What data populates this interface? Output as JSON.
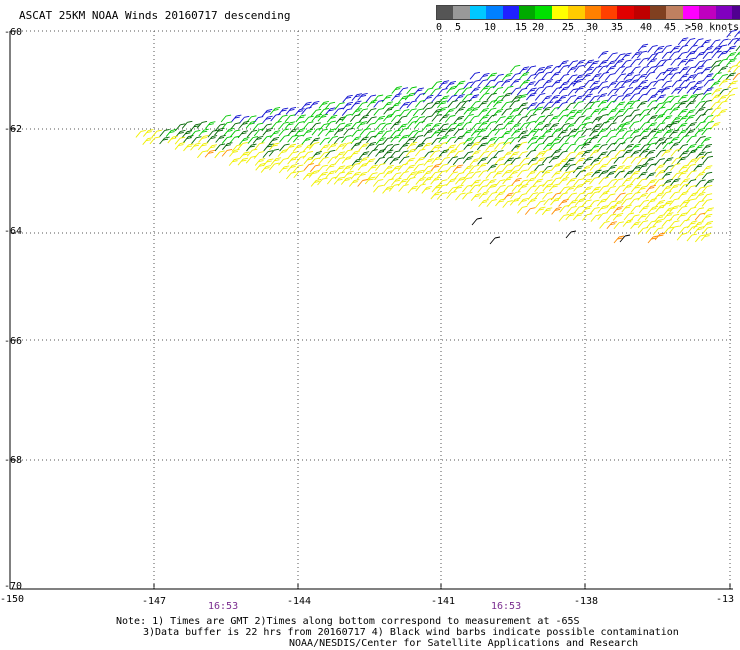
{
  "title": "ASCAT 25KM NOAA Winds 20160717 descending",
  "legend": {
    "colors": [
      "#555555",
      "#999999",
      "#00c8ff",
      "#0080ff",
      "#2020ff",
      "#00aa00",
      "#00e000",
      "#ffff00",
      "#ffcc00",
      "#ff8000",
      "#ff4000",
      "#e00000",
      "#c00000",
      "#804020",
      "#c08060",
      "#ff00ff",
      "#c000c0",
      "#8000c0",
      "#500090",
      "#301060"
    ],
    "labels": [
      "0",
      "5",
      "10",
      "15",
      "20",
      "25",
      "30",
      "35",
      "40",
      "45",
      ">50 knots"
    ]
  },
  "axes": {
    "y_labels": [
      "-60",
      "-62",
      "-64",
      "-66",
      "-68",
      "-70"
    ],
    "x_labels": [
      "-150",
      "-147",
      "-144",
      "-141",
      "-138",
      "-13"
    ]
  },
  "times": [
    "16:53",
    "16:53"
  ],
  "notes": [
    "Note: 1) Times are GMT 2)Times along bottom correspond to measurement at -65S",
    "3)Data buffer is 22 hrs from 20160717 4) Black wind barbs indicate possible contamination",
    "NOAA/NESDIS/Center for Satellite Applications and Research"
  ],
  "map": {
    "lat_range": [
      -70,
      -60
    ],
    "lon_range": [
      -150,
      -135
    ],
    "wind_speed_units": "knots",
    "swath_colors": {
      "blue": "#1010d0",
      "green": "#00c800",
      "dark_green": "#006400",
      "yellow": "#f0f000",
      "orange": "#ff8c00",
      "black": "#000000"
    }
  }
}
